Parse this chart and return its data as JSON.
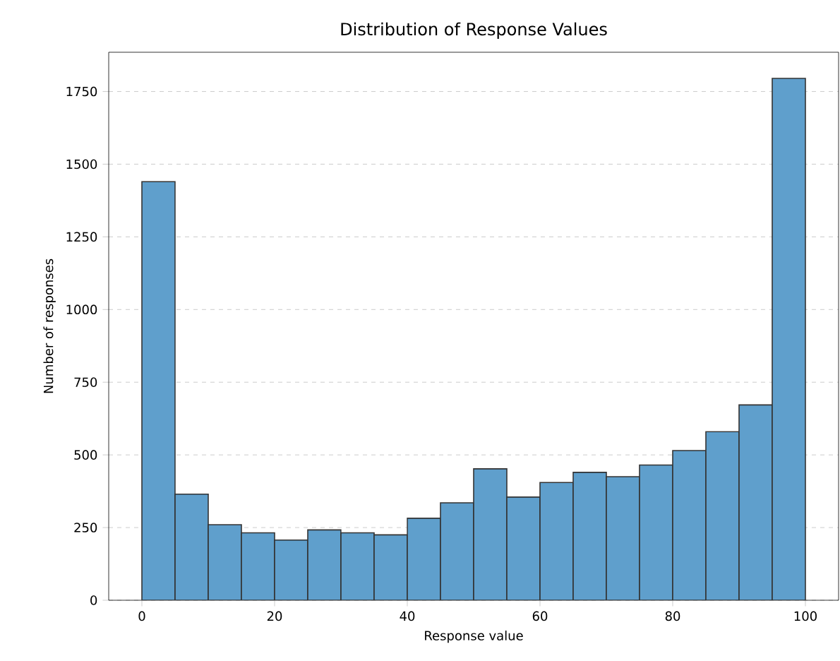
{
  "chart_data": {
    "type": "histogram",
    "title": "Distribution of Response Values",
    "xlabel": "Response value",
    "ylabel": "Number of responses",
    "bins": [
      0,
      5,
      10,
      15,
      20,
      25,
      30,
      35,
      40,
      45,
      50,
      55,
      60,
      65,
      70,
      75,
      80,
      85,
      90,
      95,
      100
    ],
    "values": [
      1440,
      365,
      260,
      232,
      207,
      242,
      232,
      225,
      282,
      335,
      452,
      355,
      405,
      440,
      425,
      465,
      515,
      580,
      672,
      1795
    ],
    "color": "#5f9fcc",
    "xlim": [
      -5,
      105
    ],
    "ylim": [
      0,
      1885
    ],
    "xticks": [
      0,
      20,
      40,
      60,
      80,
      100
    ],
    "yticks": [
      0,
      250,
      500,
      750,
      1000,
      1250,
      1500,
      1750
    ],
    "grid": "y"
  }
}
